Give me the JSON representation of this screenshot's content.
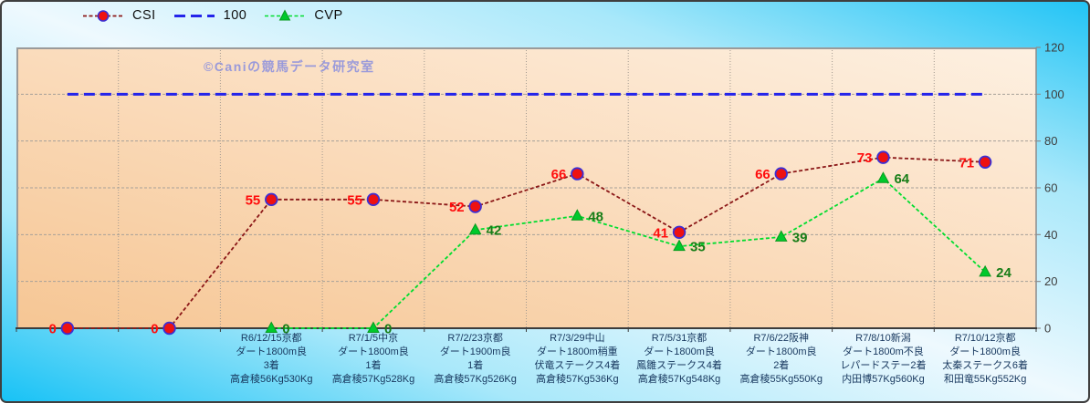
{
  "watermark": "©Caniの競馬データ研究室",
  "legend": {
    "items": [
      {
        "label": "CSI",
        "marker": "circle",
        "line_color": "#8b1717",
        "marker_fill": "#ee1111",
        "marker_edge": "#3b2fd4"
      },
      {
        "label": "100",
        "marker": "none",
        "line_color": "#2424ea"
      },
      {
        "label": "CVP",
        "marker": "triangle",
        "line_color": "#00dd2e",
        "marker_fill": "#00c92c",
        "marker_edge": "#0a9a1f"
      }
    ]
  },
  "chart_data": {
    "type": "line",
    "title": "",
    "legend_position": "top",
    "grid": true,
    "plot_bg_colors": [
      "#fdf0e1",
      "#f6c694"
    ],
    "frame_bg_color": "#22c4f5",
    "y_axis": {
      "side": "right",
      "min": 0,
      "max": 120,
      "step": 20,
      "ticks": [
        0,
        20,
        40,
        60,
        80,
        100,
        120
      ],
      "tick_color": "#3d3d3d"
    },
    "x_labels": [
      [],
      [],
      [
        "R6/12/15京都",
        "ダート1800m良",
        "3着",
        "高倉稜56Kg530Kg"
      ],
      [
        "R7/1/5中京",
        "ダート1800m良",
        "1着",
        "高倉稜57Kg528Kg"
      ],
      [
        "R7/2/23京都",
        "ダート1900m良",
        "1着",
        "高倉稜57Kg526Kg"
      ],
      [
        "R7/3/29中山",
        "ダート1800m稍重",
        "伏竜ステークス4着",
        "高倉稜57Kg536Kg"
      ],
      [
        "R7/5/31京都",
        "ダート1800m良",
        "鳳雛ステークス4着",
        "高倉稜57Kg548Kg"
      ],
      [
        "R7/6/22阪神",
        "ダート1800m良",
        "2着",
        "高倉稜55Kg550Kg"
      ],
      [
        "R7/8/10新潟",
        "ダート1800m不良",
        "レパードステー2着",
        "内田博57Kg560Kg"
      ],
      [
        "R7/10/12京都",
        "ダート1800m良",
        "太秦ステークス6着",
        "和田竜55Kg552Kg"
      ]
    ],
    "series": [
      {
        "name": "CSI",
        "style": "dashed",
        "color": "#8b1717",
        "marker": "circle",
        "marker_fill": "#ee1111",
        "marker_edge": "#3b2fd4",
        "label_color": "#ff0c0c",
        "label_side": "left",
        "values": [
          0,
          0,
          55,
          55,
          52,
          66,
          41,
          66,
          73,
          71
        ]
      },
      {
        "name": "100",
        "style": "dashed",
        "color": "#2424ea",
        "marker": "none",
        "values": [
          100,
          100,
          100,
          100,
          100,
          100,
          100,
          100,
          100,
          100
        ]
      },
      {
        "name": "CVP",
        "style": "dashed",
        "color": "#00dd2e",
        "marker": "triangle",
        "marker_fill": "#00c92c",
        "marker_edge": "#0a9a1f",
        "label_color": "#177d17",
        "label_side": "right",
        "values": [
          null,
          null,
          0,
          0,
          42,
          48,
          35,
          39,
          64,
          24
        ]
      }
    ]
  }
}
